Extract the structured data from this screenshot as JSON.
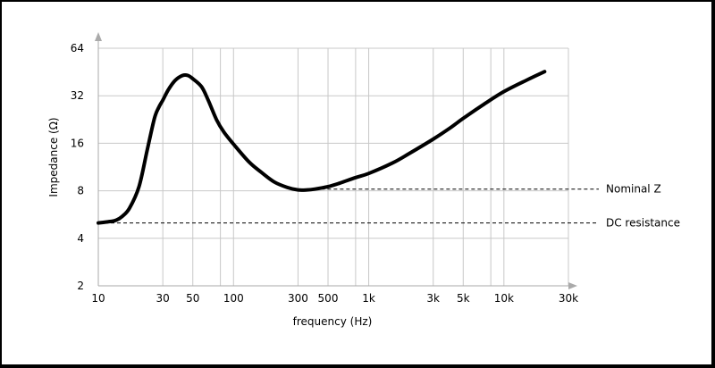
{
  "chart_data": {
    "type": "line",
    "title": "",
    "xlabel": "frequency (Hz)",
    "ylabel": "Impedance (Ω)",
    "x_scale": "log",
    "y_scale": "log",
    "xlim": [
      10,
      30000
    ],
    "ylim": [
      2,
      64
    ],
    "grid": true,
    "x_ticks": [
      {
        "value": 10,
        "label": "10"
      },
      {
        "value": 30,
        "label": "30"
      },
      {
        "value": 50,
        "label": "50"
      },
      {
        "value": 100,
        "label": "100"
      },
      {
        "value": 300,
        "label": "300"
      },
      {
        "value": 500,
        "label": "500"
      },
      {
        "value": 1000,
        "label": "1k"
      },
      {
        "value": 3000,
        "label": "3k"
      },
      {
        "value": 5000,
        "label": "5k"
      },
      {
        "value": 10000,
        "label": "10k"
      },
      {
        "value": 30000,
        "label": "30k"
      }
    ],
    "x_minor_gridlines": [
      80,
      800,
      8000
    ],
    "y_ticks": [
      {
        "value": 2,
        "label": "2"
      },
      {
        "value": 4,
        "label": "4"
      },
      {
        "value": 8,
        "label": "8"
      },
      {
        "value": 16,
        "label": "16"
      },
      {
        "value": 32,
        "label": "32"
      },
      {
        "value": 64,
        "label": "64"
      }
    ],
    "series": [
      {
        "color": "#000000",
        "x": [
          10,
          12,
          13.5,
          15,
          17,
          20,
          23,
          26,
          28,
          30,
          33,
          37,
          42,
          46,
          50,
          58,
          65,
          75,
          85,
          100,
          130,
          160,
          200,
          250,
          300,
          350,
          400,
          500,
          600,
          800,
          1000,
          1500,
          2000,
          3000,
          4000,
          5000,
          7000,
          10000,
          15000,
          20000
        ],
        "y": [
          5.0,
          5.1,
          5.2,
          5.5,
          6.2,
          8.5,
          14.5,
          23.0,
          27.0,
          30.0,
          35.0,
          40.0,
          43.0,
          43.0,
          41.0,
          36.5,
          30.0,
          22.5,
          18.8,
          15.8,
          12.2,
          10.5,
          9.1,
          8.4,
          8.1,
          8.1,
          8.2,
          8.5,
          8.9,
          9.7,
          10.3,
          12.0,
          13.8,
          17.0,
          20.0,
          23.0,
          28.0,
          34.0,
          40.5,
          45.5
        ]
      }
    ],
    "reference_lines": [
      {
        "label": "Nominal Z",
        "y": 8.2,
        "x_start": 400,
        "style": "dashed"
      },
      {
        "label": "DC resistance",
        "y": 5.0,
        "x_start": 10,
        "style": "dashed"
      }
    ]
  }
}
